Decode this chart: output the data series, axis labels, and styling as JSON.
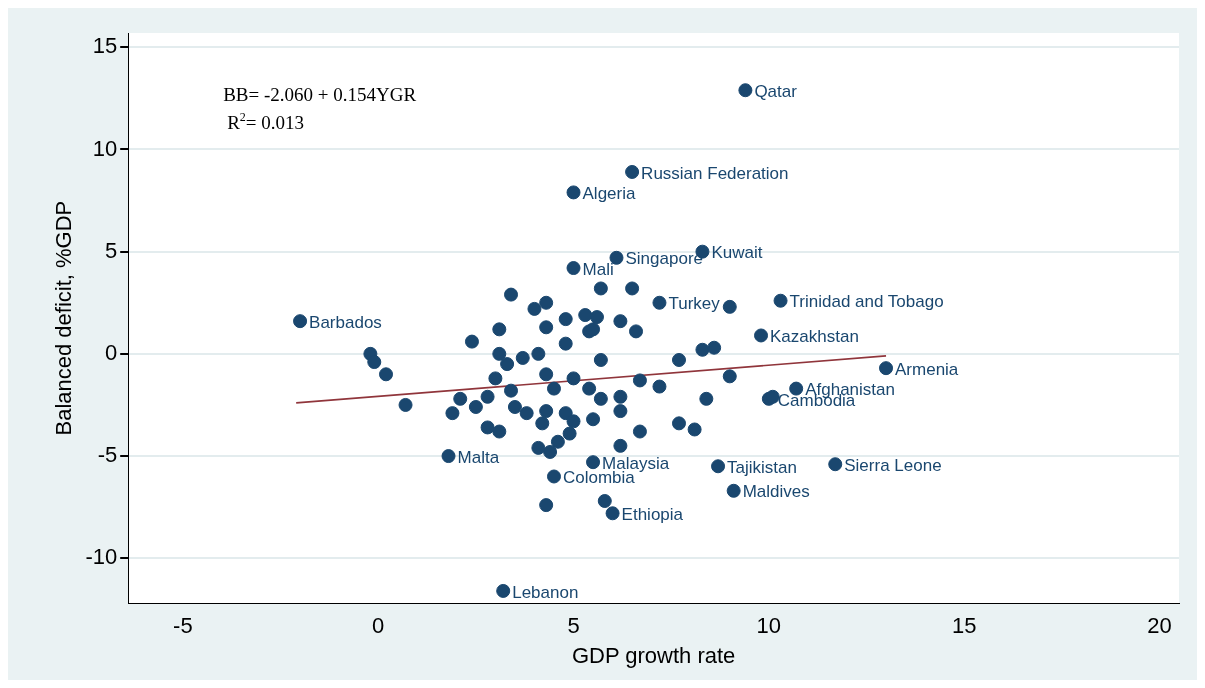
{
  "chart_data": {
    "type": "scatter",
    "xlabel": "GDP growth rate",
    "ylabel": "Balanced deficit, %GDP",
    "annotations": [
      "BB= -2.060 + 0.154YGR",
      "R$^{2}$= 0.013"
    ],
    "xlim": [
      -6.4,
      20.5
    ],
    "ylim": [
      -12.2,
      15.7
    ],
    "xticks": [
      -5,
      0,
      5,
      10,
      15,
      20
    ],
    "yticks": [
      -10,
      -5,
      0,
      5,
      10,
      15
    ],
    "grid": "y",
    "legend": false,
    "marker": "circle",
    "series": [
      {
        "color": "#1a476f",
        "x": [
          9.4,
          6.5,
          5.0,
          6.1,
          8.3,
          5.0,
          10.3,
          7.2,
          9.8,
          -2.0,
          13.0,
          10.7,
          10.0,
          1.8,
          4.5,
          5.5,
          8.7,
          11.7,
          9.1,
          4.3,
          6.0,
          3.2,
          5.8,
          10.1,
          8.4,
          9.0,
          6.5,
          5.7,
          3.4,
          4.3,
          4.0,
          3.1,
          2.4,
          -0.2,
          -0.1,
          0.2,
          0.7,
          8.3,
          8.6,
          8.1,
          4.8,
          5.3,
          5.6,
          4.3,
          4.8,
          5.4,
          3.1,
          4.1,
          3.7,
          3.3,
          5.7,
          4.3,
          3.0,
          5.0,
          3.4,
          4.5,
          5.4,
          5.7,
          2.1,
          2.5,
          1.9,
          2.8,
          3.5,
          3.8,
          4.3,
          4.8,
          5.0,
          5.5,
          2.8,
          3.1,
          4.2,
          4.9,
          4.6,
          4.1,
          4.4,
          6.2,
          5.5,
          6.6,
          7.7,
          9.0,
          6.2,
          7.7,
          6.2,
          6.7,
          7.2,
          6.2,
          6.7
        ],
        "values": [
          12.9,
          8.9,
          7.9,
          4.7,
          5.0,
          4.2,
          2.6,
          2.5,
          0.9,
          1.6,
          -0.7,
          -1.7,
          -2.2,
          -5.0,
          -6.0,
          -5.3,
          -5.5,
          -5.4,
          -6.7,
          -7.4,
          -7.8,
          -11.6,
          -7.2,
          -2.1,
          -2.2,
          2.3,
          3.2,
          3.2,
          2.9,
          2.5,
          2.2,
          1.2,
          0.6,
          0,
          -0.4,
          -1.0,
          -2.5,
          0.2,
          0.3,
          -3.7,
          1.7,
          1.9,
          1.8,
          1.3,
          0.5,
          1.1,
          0,
          0,
          -0.2,
          -0.5,
          -0.3,
          -1.0,
          -1.2,
          -1.2,
          -1.8,
          -1.7,
          -1.7,
          -2.2,
          -2.2,
          -2.6,
          -2.9,
          -2.1,
          -2.6,
          -2.9,
          -2.8,
          -2.9,
          -3.3,
          -3.2,
          -3.6,
          -3.8,
          -3.4,
          -3.9,
          -4.3,
          -4.6,
          -4.8,
          1.6,
          1.2,
          1.1,
          -0.3,
          -1.1,
          -2.8,
          -3.4,
          -4.5,
          -1.3,
          -1.6,
          -2.1,
          -3.8
        ],
        "value_labels": [
          "Qatar",
          "Russian Federation",
          "Algeria",
          "Singapore",
          "Kuwait",
          "Mali",
          "Trinidad and Tobago",
          "Turkey",
          "Kazakhstan",
          "Barbados",
          "Armenia",
          "Afghanistan",
          "Cambodia",
          "Malta",
          "Colombia",
          "Malaysia",
          "Tajikistan",
          "Sierra Leone",
          "Maldives",
          null,
          "Ethiopia",
          "Lebanon",
          null,
          null,
          null,
          null,
          null,
          null,
          null,
          null,
          null,
          null,
          null,
          null,
          null,
          null,
          null,
          null,
          null,
          null,
          null,
          null,
          null,
          null,
          null,
          null,
          null,
          null,
          null,
          null,
          null,
          null,
          null,
          null,
          null,
          null,
          null,
          null,
          null,
          null,
          null,
          null,
          null,
          null,
          null,
          null,
          null,
          null,
          null,
          null,
          null,
          null,
          null,
          null,
          null,
          null,
          null,
          null,
          null,
          null,
          null,
          null,
          null,
          null,
          null,
          null,
          null
        ]
      },
      {
        "type": "line",
        "color": "#90353b",
        "marker": "none",
        "x": [
          -2.1,
          13.0
        ],
        "values": [
          -2.4,
          -0.1
        ]
      }
    ]
  }
}
